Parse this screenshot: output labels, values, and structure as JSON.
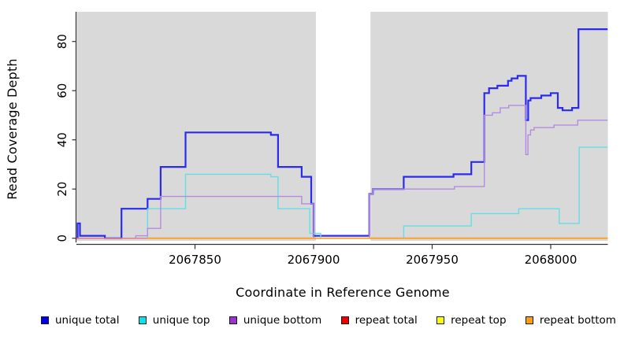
{
  "figure": {
    "background": "#ffffff",
    "panel_background": "#d9d9d9"
  },
  "chart_data": {
    "type": "line",
    "step": true,
    "title": "",
    "xlabel": "Coordinate in Reference Genome",
    "ylabel": "Read Coverage Depth",
    "xlim": [
      2067800,
      2068024
    ],
    "ylim": [
      0,
      92
    ],
    "x_ticks": [
      2067850,
      2067900,
      2067950,
      2068000
    ],
    "y_ticks": [
      0,
      20,
      40,
      60,
      80
    ],
    "grid": false,
    "legend_position": "bottom",
    "panel_bg": "#d9d9d9",
    "mask_band": {
      "from": 2067901,
      "to": 2067924,
      "color": "#ffffff"
    },
    "series": [
      {
        "name": "unique total",
        "color": "#2b2bf0",
        "legend_color": "#0000ee",
        "points": [
          [
            2067800,
            0
          ],
          [
            2067800.5,
            6
          ],
          [
            2067801.5,
            1
          ],
          [
            2067812,
            0
          ],
          [
            2067819,
            12
          ],
          [
            2067830,
            16
          ],
          [
            2067835.5,
            29
          ],
          [
            2067846,
            43
          ],
          [
            2067882,
            42
          ],
          [
            2067885,
            29
          ],
          [
            2067895,
            25
          ],
          [
            2067899,
            14
          ],
          [
            2067900,
            1
          ],
          [
            2067923.5,
            18
          ],
          [
            2067925,
            20
          ],
          [
            2067938,
            25
          ],
          [
            2067959,
            26
          ],
          [
            2067966.5,
            31
          ],
          [
            2067972,
            59
          ],
          [
            2067974,
            61
          ],
          [
            2067977.5,
            62
          ],
          [
            2067982,
            64
          ],
          [
            2067983.5,
            65
          ],
          [
            2067986,
            66
          ],
          [
            2067989.5,
            48
          ],
          [
            2067990.5,
            56
          ],
          [
            2067991.5,
            57
          ],
          [
            2067996,
            58
          ],
          [
            2068000,
            59
          ],
          [
            2068003,
            53
          ],
          [
            2068005,
            52
          ],
          [
            2068009,
            53
          ],
          [
            2068011.7,
            85
          ]
        ]
      },
      {
        "name": "unique top",
        "color": "#63dee6",
        "legend_color": "#00e5ee",
        "points": [
          [
            2067800,
            0
          ],
          [
            2067830,
            12
          ],
          [
            2067846,
            26
          ],
          [
            2067882,
            25
          ],
          [
            2067885,
            12
          ],
          [
            2067898.4,
            2
          ],
          [
            2067903,
            0
          ],
          [
            2067938,
            5
          ],
          [
            2067966.5,
            10
          ],
          [
            2067986.5,
            12
          ],
          [
            2068003.6,
            6
          ],
          [
            2068012,
            37
          ]
        ]
      },
      {
        "name": "unique bottom",
        "color": "#b58ae0",
        "legend_color": "#9a32cd",
        "points": [
          [
            2067800,
            0
          ],
          [
            2067825,
            1
          ],
          [
            2067830,
            4
          ],
          [
            2067835.5,
            17
          ],
          [
            2067895,
            14
          ],
          [
            2067900,
            0
          ],
          [
            2067923.5,
            18
          ],
          [
            2067925,
            20
          ],
          [
            2067959.4,
            21
          ],
          [
            2067972,
            50
          ],
          [
            2067975.4,
            51
          ],
          [
            2067978.7,
            53
          ],
          [
            2067982.3,
            54
          ],
          [
            2067989.5,
            34
          ],
          [
            2067990.4,
            42
          ],
          [
            2067991.5,
            44
          ],
          [
            2067993,
            45
          ],
          [
            2068001.4,
            46
          ],
          [
            2068011.4,
            48
          ]
        ]
      },
      {
        "name": "repeat total",
        "color": "#e97b7b",
        "legend_color": "#ee0000",
        "points": [
          [
            2067800,
            0
          ]
        ]
      },
      {
        "name": "repeat top",
        "color": "#f2f20a",
        "legend_color": "#ffff00",
        "points": [
          [
            2067830,
            0
          ]
        ]
      },
      {
        "name": "repeat bottom",
        "color": "#ff9f1c",
        "legend_color": "#ffa014",
        "points": [
          [
            2067830,
            0
          ]
        ]
      }
    ]
  }
}
